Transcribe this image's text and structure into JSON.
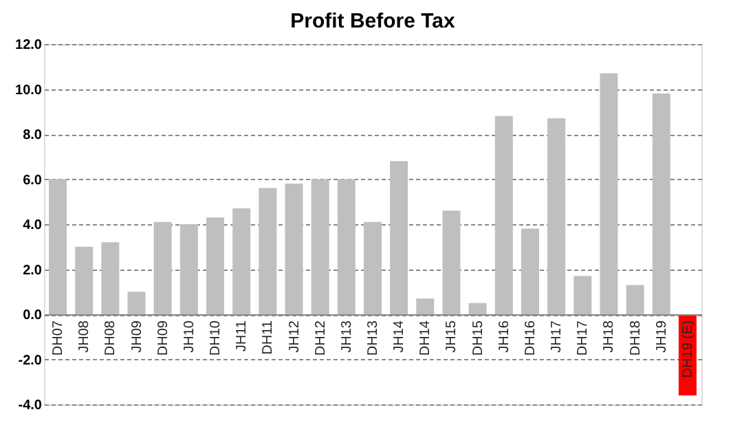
{
  "chart_data": {
    "type": "bar",
    "title": "Profit Before Tax",
    "categories": [
      "DH07",
      "JH08",
      "DH08",
      "JH09",
      "DH09",
      "JH10",
      "DH10",
      "JH11",
      "DH11",
      "JH12",
      "DH12",
      "JH13",
      "DH13",
      "JH14",
      "DH14",
      "JH15",
      "DH15",
      "JH16",
      "DH16",
      "JH17",
      "DH17",
      "JH18",
      "DH18",
      "JH19",
      "DH19 (E)"
    ],
    "values": [
      6.0,
      3.0,
      3.2,
      1.0,
      4.1,
      4.0,
      4.3,
      4.7,
      5.6,
      5.8,
      6.0,
      6.0,
      4.1,
      6.8,
      0.7,
      4.6,
      0.5,
      8.8,
      3.8,
      8.7,
      1.7,
      10.7,
      1.3,
      9.8,
      -3.6
    ],
    "colors": [
      "#bfbfbf",
      "#bfbfbf",
      "#bfbfbf",
      "#bfbfbf",
      "#bfbfbf",
      "#bfbfbf",
      "#bfbfbf",
      "#bfbfbf",
      "#bfbfbf",
      "#bfbfbf",
      "#bfbfbf",
      "#bfbfbf",
      "#bfbfbf",
      "#bfbfbf",
      "#bfbfbf",
      "#bfbfbf",
      "#bfbfbf",
      "#bfbfbf",
      "#bfbfbf",
      "#bfbfbf",
      "#bfbfbf",
      "#bfbfbf",
      "#bfbfbf",
      "#bfbfbf",
      "#ff0000"
    ],
    "ylim": [
      -4.0,
      12.0
    ],
    "yticks": [
      {
        "value": -4,
        "label": "-4.0"
      },
      {
        "value": -2,
        "label": "-2.0"
      },
      {
        "value": 0,
        "label": "0.0"
      },
      {
        "value": 2,
        "label": "2.0"
      },
      {
        "value": 4,
        "label": "4.0"
      },
      {
        "value": 6,
        "label": "6.0"
      },
      {
        "value": 8,
        "label": "8.0"
      },
      {
        "value": 10,
        "label": "10.0"
      },
      {
        "value": 12,
        "label": "12.0"
      }
    ],
    "grid": "y"
  }
}
